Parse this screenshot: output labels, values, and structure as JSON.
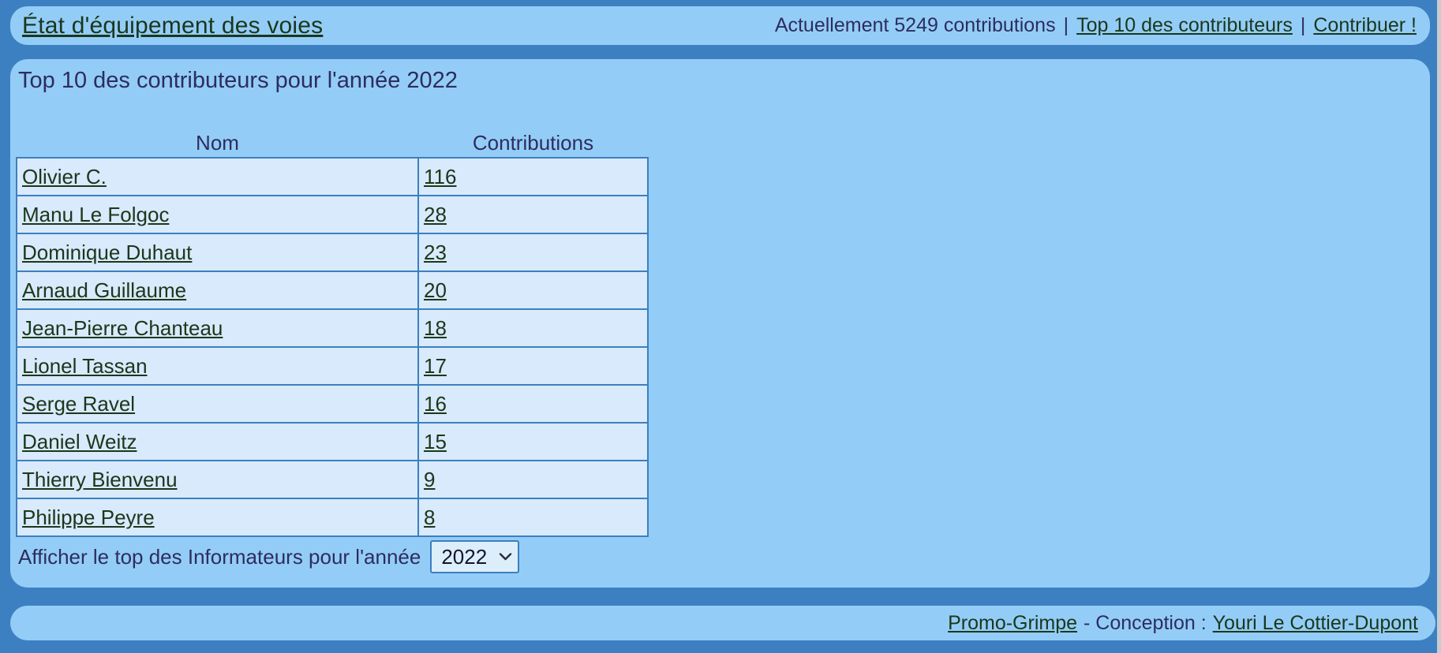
{
  "colors": {
    "background": "#3d80c2",
    "panel": "#93cdf7",
    "row": "#d8eafb",
    "table_border": "#3d7fc0",
    "text": "#2d2d5e",
    "link": "#1b371b"
  },
  "header": {
    "site_title": "État d'équipement des voies",
    "status_text": "Actuellement 5249 contributions",
    "separator": "|",
    "links": [
      {
        "label": "Top 10 des contributeurs"
      },
      {
        "label": "Contribuer !"
      }
    ]
  },
  "main": {
    "title": "Top 10 des contributeurs pour l'année 2022",
    "table": {
      "columns": [
        "Nom",
        "Contributions"
      ],
      "rows": [
        {
          "name": "Olivier C.",
          "contributions": "116"
        },
        {
          "name": "Manu Le Folgoc",
          "contributions": "28"
        },
        {
          "name": "Dominique Duhaut",
          "contributions": "23"
        },
        {
          "name": "Arnaud Guillaume",
          "contributions": "20"
        },
        {
          "name": "Jean-Pierre Chanteau",
          "contributions": "18"
        },
        {
          "name": "Lionel Tassan",
          "contributions": "17"
        },
        {
          "name": "Serge Ravel",
          "contributions": "16"
        },
        {
          "name": "Daniel Weitz",
          "contributions": "15"
        },
        {
          "name": "Thierry Bienvenu",
          "contributions": "9"
        },
        {
          "name": "Philippe Peyre",
          "contributions": "8"
        }
      ]
    },
    "year_filter": {
      "label": "Afficher le top des Informateurs pour l'année",
      "selected": "2022"
    }
  },
  "footer": {
    "promo_link": "Promo-Grimpe",
    "middle_text": "- Conception :",
    "author_link": "Youri Le Cottier-Dupont"
  }
}
